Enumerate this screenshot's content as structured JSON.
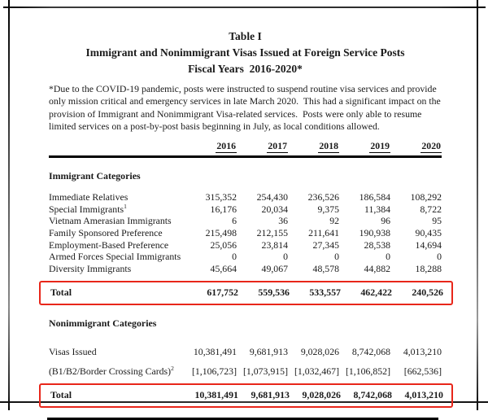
{
  "page": {
    "title_line1": "Table I",
    "title_line2": "Immigrant and Nonimmigrant Visas Issued at Foreign Service Posts",
    "title_line3": "Fiscal Years  2016-2020*",
    "footnote": "*Due to the COVID-19 pandemic, posts were instructed to suspend routine visa services and provide only mission critical and emergency services in late March 2020.  This had a significant impact on the provision of Immigrant and Nonimmigrant Visa-related services.  Posts were only able to resume limited services on a post-by-post basis beginning in July, as local conditions allowed."
  },
  "colors": {
    "highlight_red": "#e8261a",
    "rule_black": "#000000"
  },
  "table": {
    "years": [
      "2016",
      "2017",
      "2018",
      "2019",
      "2020"
    ],
    "immigrant": {
      "heading": "Immigrant Categories",
      "rows": [
        {
          "label": "Immediate Relatives",
          "sup": "",
          "values": [
            "315,352",
            "254,430",
            "236,526",
            "186,584",
            "108,292"
          ]
        },
        {
          "label": "Special Immigrants",
          "sup": "1",
          "values": [
            "16,176",
            "20,034",
            "9,375",
            "11,384",
            "8,722"
          ]
        },
        {
          "label": "Vietnam Amerasian Immigrants",
          "sup": "",
          "values": [
            "6",
            "36",
            "92",
            "96",
            "95"
          ]
        },
        {
          "label": "Family Sponsored Preference",
          "sup": "",
          "values": [
            "215,498",
            "212,155",
            "211,641",
            "190,938",
            "90,435"
          ]
        },
        {
          "label": "Employment-Based Preference",
          "sup": "",
          "values": [
            "25,056",
            "23,814",
            "27,345",
            "28,538",
            "14,694"
          ]
        },
        {
          "label": "Armed Forces Special Immigrants",
          "sup": "",
          "values": [
            "0",
            "0",
            "0",
            "0",
            "0"
          ]
        },
        {
          "label": "Diversity Immigrants",
          "sup": "",
          "values": [
            "45,664",
            "49,067",
            "48,578",
            "44,882",
            "18,288"
          ]
        }
      ],
      "total": {
        "label": "Total",
        "values": [
          "617,752",
          "559,536",
          "533,557",
          "462,422",
          "240,526"
        ]
      }
    },
    "nonimmigrant": {
      "heading": "Nonimmigrant Categories",
      "rows": [
        {
          "label": "Visas Issued",
          "sup": "",
          "values": [
            "10,381,491",
            "9,681,913",
            "9,028,026",
            "8,742,068",
            "4,013,210"
          ]
        },
        {
          "label": "(B1/B2/Border Crossing Cards)",
          "sup": "2",
          "values": [
            "[1,106,723]",
            "[1,073,915]",
            "[1,032,467]",
            "[1,106,852]",
            "[662,536]"
          ]
        }
      ],
      "total": {
        "label": "Total",
        "values": [
          "10,381,491",
          "9,681,913",
          "9,028,026",
          "8,742,068",
          "4,013,210"
        ]
      }
    }
  }
}
